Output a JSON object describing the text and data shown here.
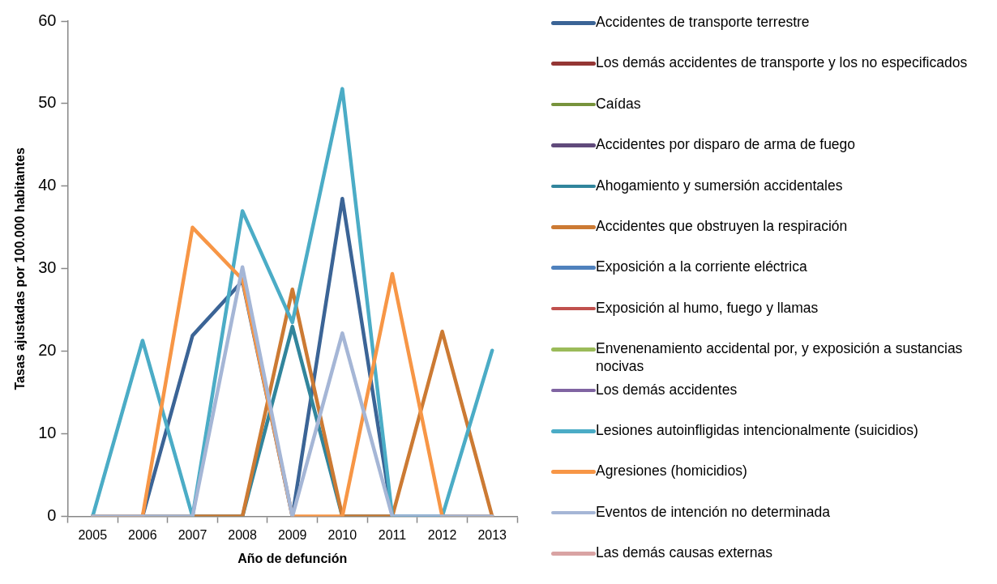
{
  "chart_data": {
    "type": "line",
    "xlabel": "Año de defunción",
    "ylabel": "Tasas ajustadas por 100.000 habitantes",
    "categories": [
      "2005",
      "2006",
      "2007",
      "2008",
      "2009",
      "2010",
      "2011",
      "2012",
      "2013"
    ],
    "ylim": [
      0,
      60
    ],
    "yticks": [
      0,
      10,
      20,
      30,
      40,
      50,
      60
    ],
    "grid": false,
    "legend": "right",
    "marker": "none",
    "line_style": "solid",
    "series": [
      {
        "name": "Accidentes de transporte terrestre",
        "color": "#3b6496",
        "values": [
          0,
          0,
          21.9,
          28.5,
          0,
          38.5,
          0,
          0,
          0
        ]
      },
      {
        "name": "Los demás accidentes de transporte y los no especificados",
        "color": "#943634",
        "values": [
          null,
          null,
          null,
          null,
          null,
          null,
          null,
          null,
          null
        ]
      },
      {
        "name": "Caídas",
        "color": "#77933c",
        "values": [
          null,
          null,
          null,
          null,
          null,
          null,
          null,
          null,
          null
        ]
      },
      {
        "name": "Accidentes por disparo de arma de fuego",
        "color": "#604a7b",
        "values": [
          null,
          null,
          null,
          null,
          null,
          null,
          null,
          null,
          null
        ]
      },
      {
        "name": "Ahogamiento y sumersión accidentales",
        "color": "#31859c",
        "values": [
          0,
          0,
          0,
          0,
          23,
          0,
          0,
          0,
          0
        ]
      },
      {
        "name": "Accidentes que obstruyen la respiración",
        "color": "#cc7a33",
        "values": [
          0,
          0,
          0,
          0,
          27.5,
          0,
          0,
          22.4,
          0
        ]
      },
      {
        "name": "Exposición a la corriente eléctrica",
        "color": "#4f81bd",
        "values": [
          null,
          null,
          null,
          null,
          null,
          null,
          null,
          null,
          null
        ]
      },
      {
        "name": "Exposición al humo, fuego y llamas",
        "color": "#c0504d",
        "values": [
          null,
          null,
          null,
          null,
          null,
          null,
          null,
          null,
          null
        ]
      },
      {
        "name": "Envenenamiento accidental por, y exposición a sustancias nocivas",
        "color": "#9bbb59",
        "values": [
          null,
          null,
          null,
          null,
          null,
          null,
          null,
          null,
          null
        ]
      },
      {
        "name": "Los demás accidentes",
        "color": "#8064a2",
        "values": [
          null,
          null,
          null,
          null,
          null,
          null,
          null,
          null,
          null
        ]
      },
      {
        "name": "Lesiones autoinfligidas intencionalmente (suicidios)",
        "color": "#4bacc6",
        "values": [
          0,
          21.3,
          0,
          37,
          23.5,
          51.8,
          0,
          0,
          20.1
        ]
      },
      {
        "name": "Agresiones (homicidios)",
        "color": "#f79646",
        "values": [
          0,
          0,
          35,
          28.7,
          0,
          0,
          29.4,
          0,
          0
        ]
      },
      {
        "name": "Eventos de intención no determinada",
        "color": "#a5b6d6",
        "values": [
          0,
          0,
          0,
          30.2,
          0,
          22.2,
          0,
          0,
          0
        ]
      },
      {
        "name": "Las demás causas externas",
        "color": "#d9a3a3",
        "values": [
          null,
          null,
          null,
          null,
          null,
          null,
          null,
          null,
          null
        ]
      }
    ]
  }
}
